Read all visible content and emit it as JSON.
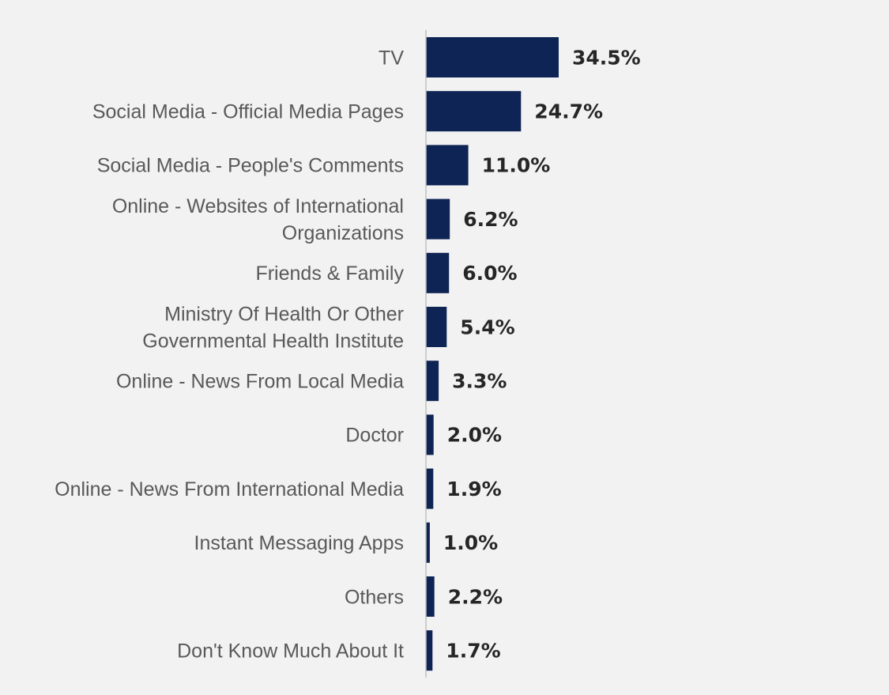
{
  "chart_data": {
    "type": "bar",
    "orientation": "horizontal",
    "title": "",
    "xlabel": "",
    "ylabel": "",
    "categories": [
      [
        "TV"
      ],
      [
        "Social Media - Official Media Pages"
      ],
      [
        "Social Media - People's Comments"
      ],
      [
        "Online - Websites of International",
        "Organizations"
      ],
      [
        "Friends & Family"
      ],
      [
        "Ministry Of Health Or Other",
        "Governmental Health Institute"
      ],
      [
        "Online - News From Local Media"
      ],
      [
        "Doctor"
      ],
      [
        "Online - News From International Media"
      ],
      [
        "Instant Messaging Apps"
      ],
      [
        "Others"
      ],
      [
        "Don't Know Much About It"
      ]
    ],
    "values": [
      34.5,
      24.7,
      11.0,
      6.2,
      6.0,
      5.4,
      3.3,
      2.0,
      1.9,
      1.0,
      2.2,
      1.7
    ],
    "value_labels": [
      "34.5%",
      "24.7%",
      "11.0%",
      "6.2%",
      "6.0%",
      "5.4%",
      "3.3%",
      "2.0%",
      "1.9%",
      "1.0%",
      "2.2%",
      "1.7%"
    ],
    "unit": "%",
    "bar_color": "#0e2454",
    "axis_color": "#bfbfbf",
    "grid": false,
    "legend": "none",
    "xlim": [
      0,
      34.5
    ]
  }
}
